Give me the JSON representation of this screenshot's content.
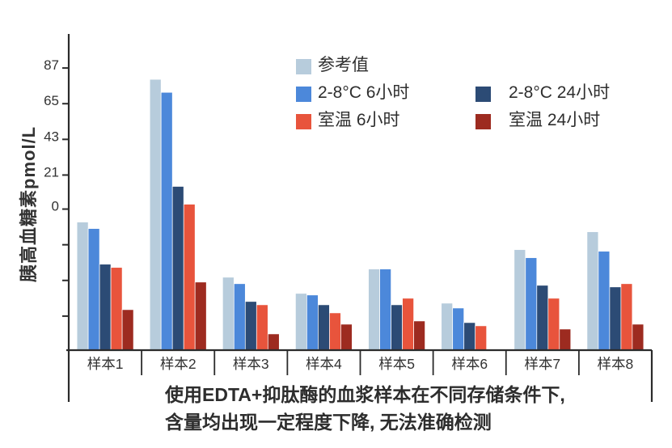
{
  "chart_data": {
    "type": "bar",
    "title": "",
    "xlabel": "",
    "ylabel": "胰高血糖素pmol/L",
    "categories": [
      "样本1",
      "样本2",
      "样本3",
      "样本4",
      "样本5",
      "样本6",
      "样本7",
      "样本8"
    ],
    "series": [
      {
        "name": "参考值",
        "color": "#b7ccdc",
        "values": [
          -8,
          80,
          -42,
          -52,
          -37,
          -58,
          -25,
          -14
        ]
      },
      {
        "name": "2-8°C 6小时",
        "color": "#4c88da",
        "values": [
          -12,
          72,
          -46,
          -53,
          -37,
          -61,
          -30,
          -26
        ]
      },
      {
        "name": "2-8°C 24小时",
        "color": "#2c4b75",
        "values": [
          -34,
          14,
          -57,
          -59,
          -59,
          -70,
          -47,
          -48
        ]
      },
      {
        "name": "室温 6小时",
        "color": "#e8543c",
        "values": [
          -36,
          3,
          -59,
          -64,
          -55,
          -72,
          -55,
          -46
        ]
      },
      {
        "name": "室温 24小时",
        "color": "#9d2b20",
        "values": [
          -62,
          -45,
          -77,
          -71,
          -69,
          null,
          -74,
          -71
        ]
      }
    ],
    "y_axis": {
      "labeled_ticks": [
        87,
        65,
        43,
        21,
        0
      ],
      "unlabeled_ticks": [
        -22,
        -44,
        -66
      ],
      "baseline_value": -87,
      "ylim": [
        -87,
        108
      ]
    },
    "grid": false,
    "legend_position": "top-center",
    "bar_order": [
      "参考值",
      "2-8°C 6小时",
      "2-8°C 24小时",
      "室温 6小时",
      "室温 24小时"
    ]
  },
  "legend": {
    "columns": [
      [
        0,
        1,
        3
      ],
      [
        2,
        4
      ]
    ]
  },
  "caption": {
    "line1": "使用EDTA+抑肽酶的血浆样本在不同存储条件下,",
    "line2": "含量均出现一定程度下降, 无法准确检测"
  },
  "colors": {
    "axis": "#2b2b2b",
    "text": "#333333"
  }
}
